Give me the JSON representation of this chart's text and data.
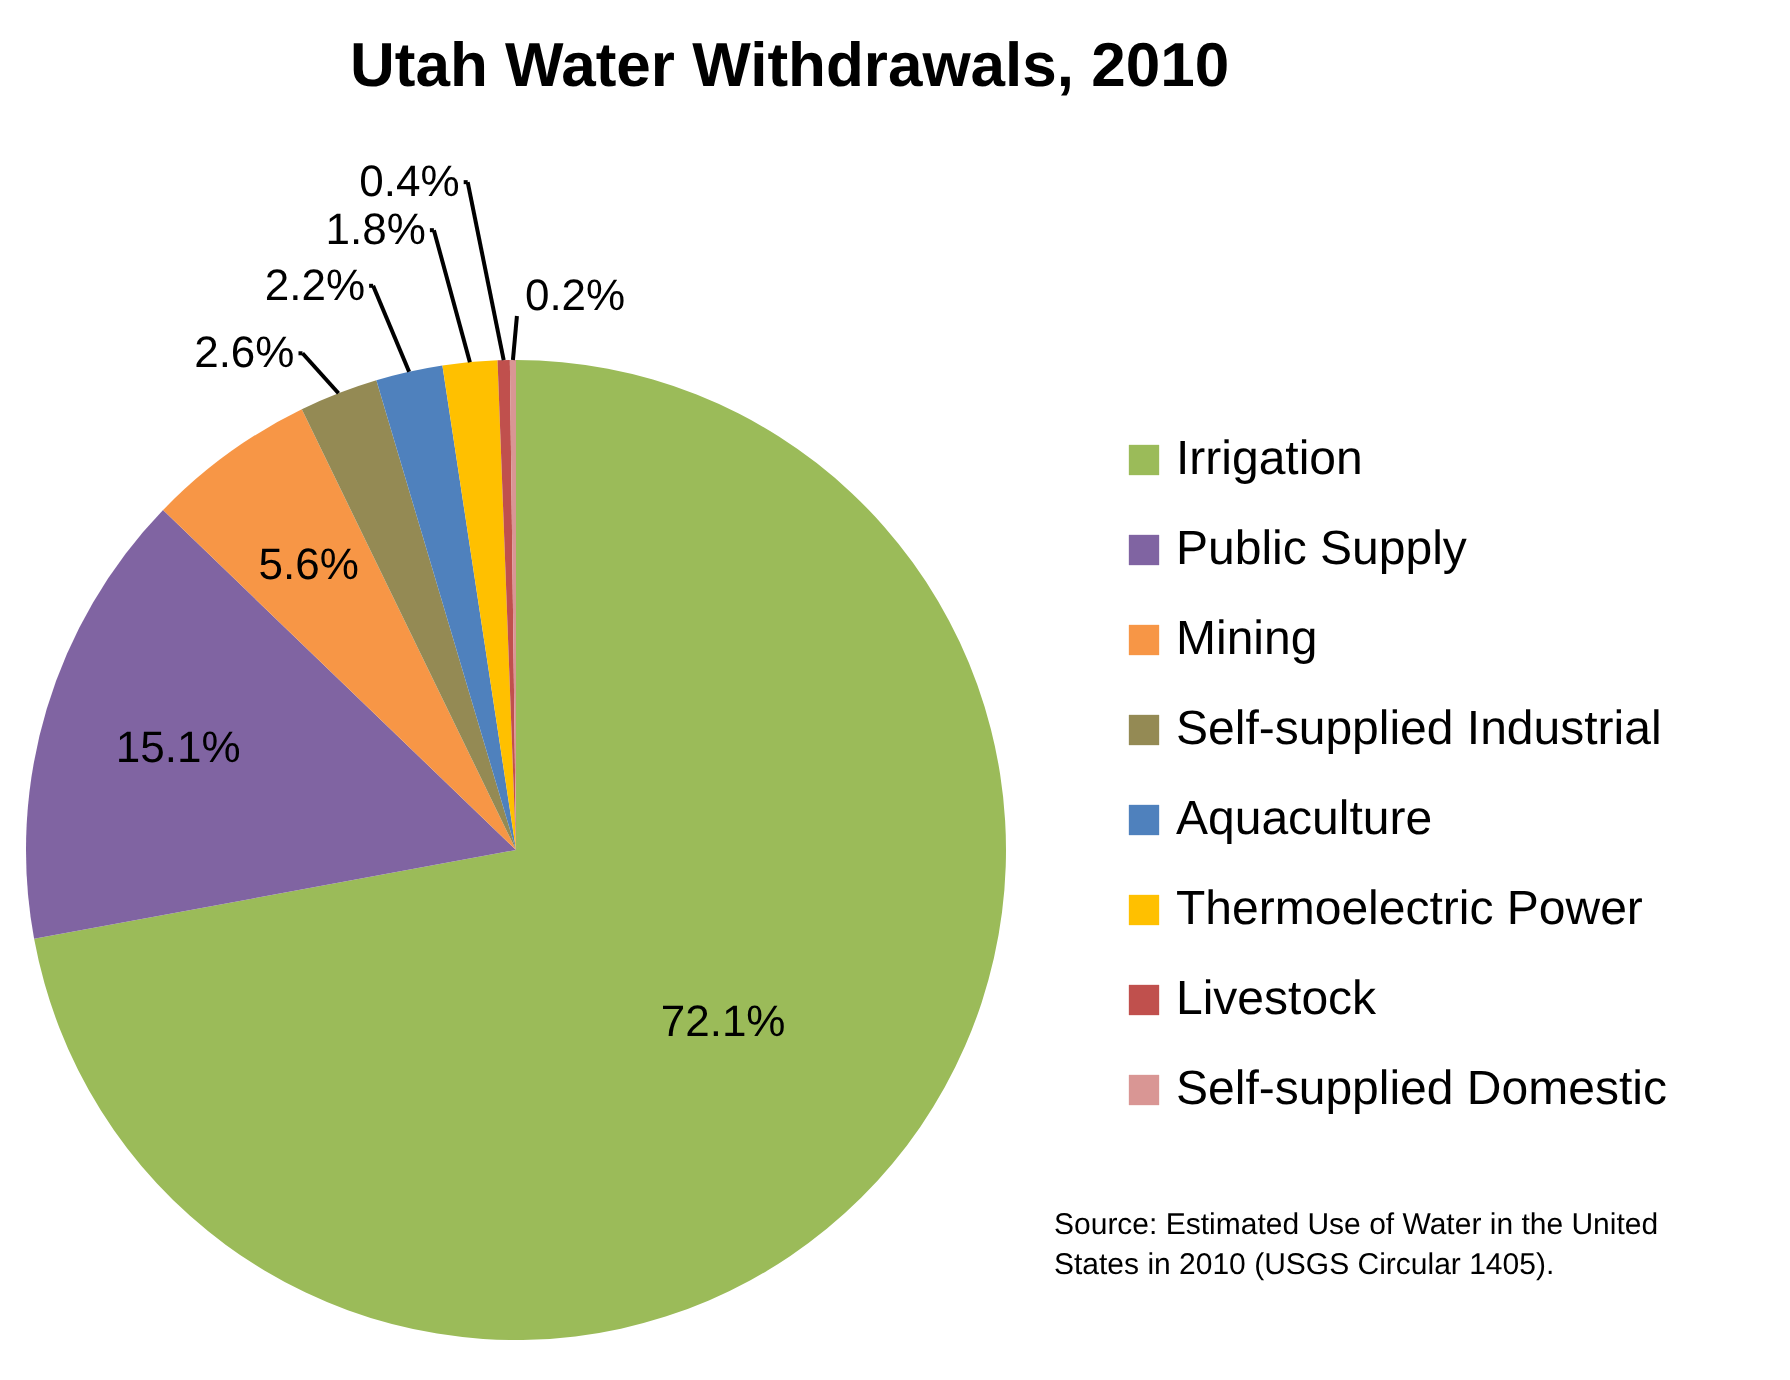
{
  "chart_data": {
    "type": "pie",
    "title": "Utah Water Withdrawals, 2010",
    "categories": [
      "Irrigation",
      "Public Supply",
      "Mining",
      "Self-supplied Industrial",
      "Aquaculture",
      "Thermoelectric Power",
      "Livestock",
      "Self-supplied Domestic"
    ],
    "values": [
      72.1,
      15.1,
      5.6,
      2.6,
      2.2,
      1.8,
      0.4,
      0.2
    ],
    "value_labels": [
      "72.1%",
      "15.1%",
      "5.6%",
      "2.6%",
      "2.2%",
      "1.8%",
      "0.4%",
      "0.2%"
    ],
    "colors": [
      "#9bbb59",
      "#8064a2",
      "#f79646",
      "#948a54",
      "#4f81bd",
      "#ffc000",
      "#c0504d",
      "#d99694"
    ],
    "legend": "right",
    "annotations": [
      "Source: Estimated Use of Water in the United States in 2010 (USGS Circular 1405)."
    ]
  }
}
